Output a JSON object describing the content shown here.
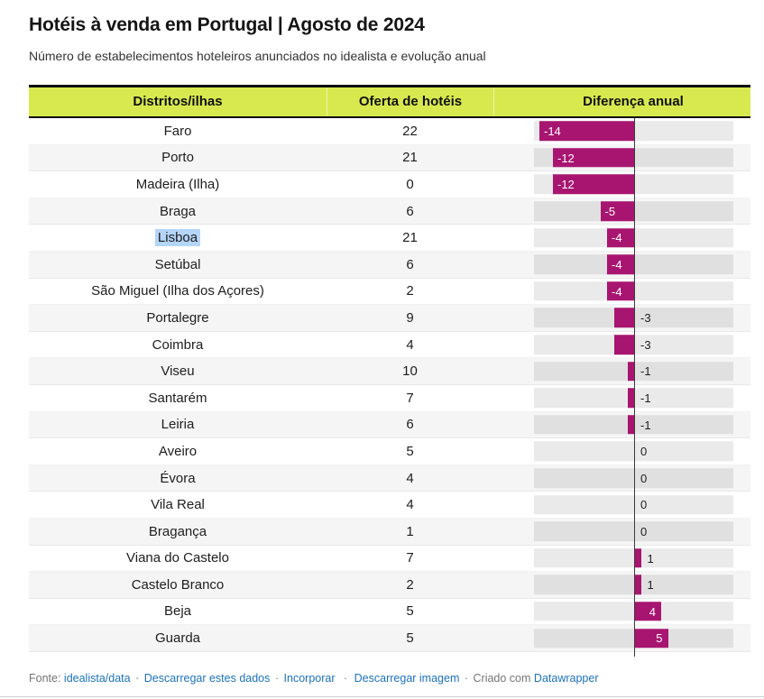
{
  "header": {
    "title": "Hotéis à venda em Portugal | Agosto de 2024",
    "subtitle": "Número de estabelecimentos hoteleiros anunciados no idealista e evolução anual"
  },
  "table": {
    "columns": [
      "Distritos/ilhas",
      "Oferta de hotéis",
      "Diferença anual"
    ],
    "rows": [
      {
        "district": "Faro",
        "offer": "22",
        "diff": -14,
        "diff_label": "-14",
        "highlighted": false
      },
      {
        "district": "Porto",
        "offer": "21",
        "diff": -12,
        "diff_label": "-12",
        "highlighted": false
      },
      {
        "district": "Madeira (Ilha)",
        "offer": "0",
        "diff": -12,
        "diff_label": "-12",
        "highlighted": false
      },
      {
        "district": "Braga",
        "offer": "6",
        "diff": -5,
        "diff_label": "-5",
        "highlighted": false
      },
      {
        "district": "Lisboa",
        "offer": "21",
        "diff": -4,
        "diff_label": "-4",
        "highlighted": true
      },
      {
        "district": "Setúbal",
        "offer": "6",
        "diff": -4,
        "diff_label": "-4",
        "highlighted": false
      },
      {
        "district": "São Miguel (Ilha dos Açores)",
        "offer": "2",
        "diff": -4,
        "diff_label": "-4",
        "highlighted": false
      },
      {
        "district": "Portalegre",
        "offer": "9",
        "diff": -3,
        "diff_label": "-3",
        "highlighted": false
      },
      {
        "district": "Coimbra",
        "offer": "4",
        "diff": -3,
        "diff_label": "-3",
        "highlighted": false
      },
      {
        "district": "Viseu",
        "offer": "10",
        "diff": -1,
        "diff_label": "-1",
        "highlighted": false
      },
      {
        "district": "Santarém",
        "offer": "7",
        "diff": -1,
        "diff_label": "-1",
        "highlighted": false
      },
      {
        "district": "Leiria",
        "offer": "6",
        "diff": -1,
        "diff_label": "-1",
        "highlighted": false
      },
      {
        "district": "Aveiro",
        "offer": "5",
        "diff": 0,
        "diff_label": "0",
        "highlighted": false
      },
      {
        "district": "Évora",
        "offer": "4",
        "diff": 0,
        "diff_label": "0",
        "highlighted": false
      },
      {
        "district": "Vila Real",
        "offer": "4",
        "diff": 0,
        "diff_label": "0",
        "highlighted": false
      },
      {
        "district": "Bragança",
        "offer": "1",
        "diff": 0,
        "diff_label": "0",
        "highlighted": false
      },
      {
        "district": "Viana do Castelo",
        "offer": "7",
        "diff": 1,
        "diff_label": "1",
        "highlighted": false
      },
      {
        "district": "Castelo Branco",
        "offer": "2",
        "diff": 1,
        "diff_label": "1",
        "highlighted": false
      },
      {
        "district": "Beja",
        "offer": "5",
        "diff": 4,
        "diff_label": "4",
        "highlighted": false
      },
      {
        "district": "Guarda",
        "offer": "5",
        "diff": 5,
        "diff_label": "5",
        "highlighted": false
      }
    ]
  },
  "chart_data": {
    "type": "bar",
    "title": "Hotéis à venda em Portugal | Agosto de 2024",
    "subtitle": "Número de estabelecimentos hoteleiros anunciados no idealista e evolução anual",
    "categories": [
      "Faro",
      "Porto",
      "Madeira (Ilha)",
      "Braga",
      "Lisboa",
      "Setúbal",
      "São Miguel (Ilha dos Açores)",
      "Portalegre",
      "Coimbra",
      "Viseu",
      "Santarém",
      "Leiria",
      "Aveiro",
      "Évora",
      "Vila Real",
      "Bragança",
      "Viana do Castelo",
      "Castelo Branco",
      "Beja",
      "Guarda"
    ],
    "series": [
      {
        "name": "Oferta de hotéis",
        "values": [
          22,
          21,
          0,
          6,
          21,
          6,
          2,
          9,
          4,
          10,
          7,
          6,
          5,
          4,
          4,
          1,
          7,
          2,
          5,
          5
        ]
      },
      {
        "name": "Diferença anual",
        "values": [
          -14,
          -12,
          -12,
          -5,
          -4,
          -4,
          -4,
          -3,
          -3,
          -1,
          -1,
          -1,
          0,
          0,
          0,
          0,
          1,
          1,
          4,
          5
        ]
      }
    ],
    "orientation": "horizontal",
    "diff_axis_range": [
      -14.8,
      14.7
    ],
    "zero_line": true,
    "legend_position": "none"
  },
  "footer": {
    "source_label": "Fonte:",
    "source_link": "idealista/data",
    "link_download_data": "Descarregar estes dados",
    "link_embed": "Incorporar",
    "link_download_image": "Descarregar imagem",
    "created_label": "Criado com",
    "created_link": "Datawrapper",
    "separator": "·"
  },
  "colors": {
    "header_bg": "#d8e94f",
    "bar": "#a81570",
    "track": "rgba(17,17,17,0.088)",
    "stripe": "#f5f5f5",
    "highlight": "#b4d5f8",
    "link": "#1c72bb",
    "zero_line": "#3a3a3a",
    "bottom_line": "#cfcfcf",
    "bar_label_inside": "#ffffff",
    "bar_label_outside": "#1d1d1d"
  }
}
